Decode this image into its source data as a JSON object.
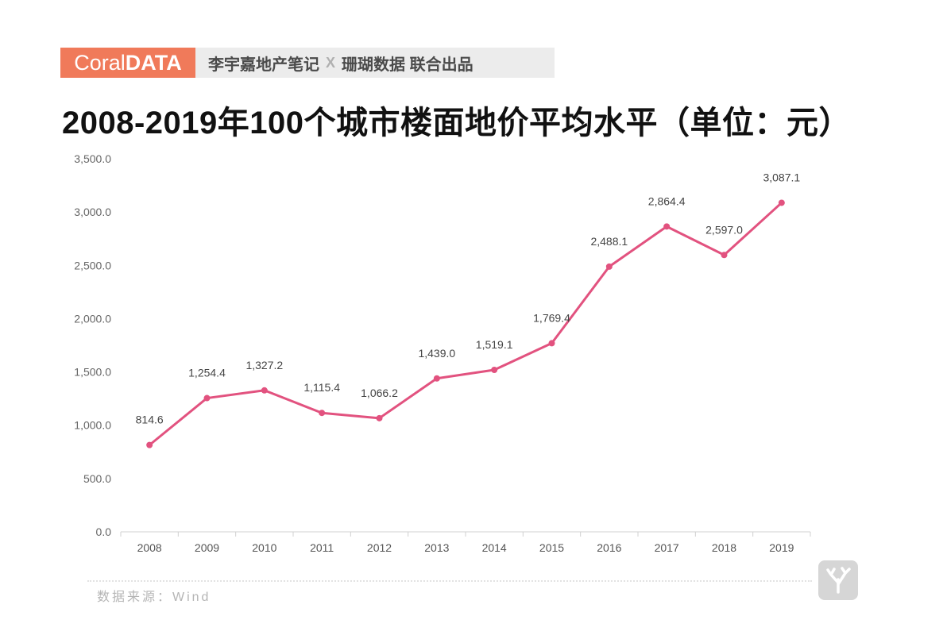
{
  "header": {
    "brand_light": "Coral",
    "brand_bold": "DATA",
    "producer_a": "李宇嘉地产笔记",
    "producer_x": "X",
    "producer_b": "珊瑚数据 联合出品"
  },
  "source": "数据来源：Wind",
  "colors": {
    "line": "#e2527f",
    "brand": "#f07a5a"
  },
  "chart_data": {
    "type": "line",
    "title": "2008-2019年100个城市楼面地价平均水平（单位：元）",
    "xlabel": "",
    "ylabel": "",
    "categories": [
      "2008",
      "2009",
      "2010",
      "2011",
      "2012",
      "2013",
      "2014",
      "2015",
      "2016",
      "2017",
      "2018",
      "2019"
    ],
    "values": [
      814.6,
      1254.4,
      1327.2,
      1115.4,
      1066.2,
      1439.0,
      1519.1,
      1769.4,
      2488.1,
      2864.4,
      2597.0,
      3087.1
    ],
    "value_labels": [
      "814.6",
      "1,254.4",
      "1,327.2",
      "1,115.4",
      "1,066.2",
      "1,439.0",
      "1,519.1",
      "1,769.4",
      "2,488.1",
      "2,864.4",
      "2,597.0",
      "3,087.1"
    ],
    "yticks": [
      "0.0",
      "500.0",
      "1,000.0",
      "1,500.0",
      "2,000.0",
      "2,500.0",
      "3,000.0",
      "3,500.0"
    ],
    "ylim": [
      0,
      3500
    ],
    "grid": false,
    "legend": "none"
  }
}
